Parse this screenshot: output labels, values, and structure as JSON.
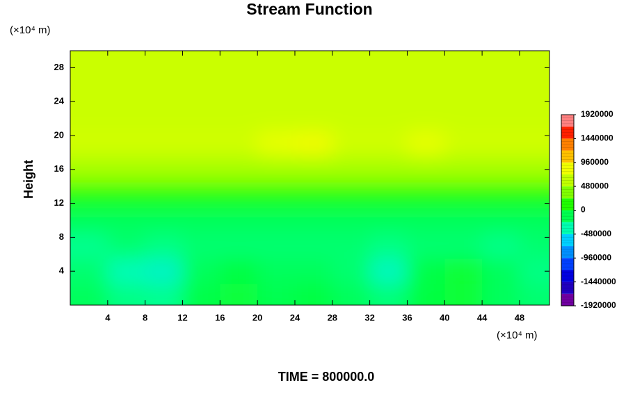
{
  "chart_data": {
    "type": "contour",
    "title": "Stream Function",
    "ylabel": "Height",
    "y_unit_label": "(×10⁴ m)",
    "x_unit_label": "(×10⁴ m)",
    "annotation": "TIME = 800000.0",
    "xlim": [
      0,
      51.2
    ],
    "ylim": [
      0,
      30
    ],
    "xticks": [
      4,
      8,
      12,
      16,
      20,
      24,
      28,
      32,
      36,
      40,
      44,
      48
    ],
    "yticks": [
      4,
      8,
      12,
      16,
      20,
      24,
      28
    ],
    "x": [
      2,
      6,
      10,
      14,
      18,
      22,
      26,
      30,
      34,
      38,
      42,
      46,
      50
    ],
    "y": [
      1,
      4,
      7,
      10,
      13,
      16,
      19,
      22,
      25,
      28
    ],
    "z": [
      [
        -150000,
        -250000,
        -280000,
        -100000,
        -60000,
        -120000,
        -80000,
        -150000,
        -220000,
        -80000,
        -50000,
        -150000,
        -200000
      ],
      [
        -200000,
        -380000,
        -420000,
        -150000,
        -80000,
        -150000,
        -150000,
        -200000,
        -400000,
        -100000,
        -40000,
        -150000,
        -250000
      ],
      [
        -280000,
        -200000,
        -250000,
        -200000,
        -200000,
        -200000,
        -200000,
        -200000,
        -250000,
        -200000,
        -200000,
        -260000,
        -200000
      ],
      [
        -150000,
        -150000,
        -150000,
        -150000,
        -150000,
        -150000,
        -150000,
        -150000,
        -150000,
        -150000,
        -150000,
        -150000,
        -150000
      ],
      [
        100000,
        100000,
        100000,
        100000,
        100000,
        100000,
        100000,
        100000,
        100000,
        100000,
        100000,
        100000,
        100000
      ],
      [
        500000,
        500000,
        500000,
        500000,
        500000,
        500000,
        500000,
        500000,
        500000,
        500000,
        500000,
        500000,
        500000
      ],
      [
        680000,
        680000,
        680000,
        680000,
        680000,
        800000,
        850000,
        680000,
        680000,
        800000,
        680000,
        680000,
        680000
      ],
      [
        650000,
        650000,
        650000,
        650000,
        650000,
        650000,
        650000,
        650000,
        650000,
        650000,
        650000,
        650000,
        650000
      ],
      [
        650000,
        650000,
        650000,
        650000,
        650000,
        650000,
        650000,
        650000,
        650000,
        650000,
        650000,
        650000,
        650000
      ],
      [
        650000,
        650000,
        650000,
        650000,
        650000,
        650000,
        650000,
        650000,
        650000,
        650000,
        650000,
        650000,
        650000
      ]
    ],
    "zlim": [
      -1920000,
      1920000
    ],
    "zticks": [
      -1920000,
      -1440000,
      -960000,
      -480000,
      0,
      480000,
      960000,
      1440000,
      1920000
    ],
    "colors": [
      "#7000a0",
      "#2000c0",
      "#0000e0",
      "#0040ff",
      "#0090ff",
      "#00d0ff",
      "#00ffb0",
      "#00ff50",
      "#20ff00",
      "#80ff00",
      "#c0ff00",
      "#f0ff00",
      "#ffc000",
      "#ff8000",
      "#ff2000",
      "#ff8080"
    ]
  }
}
